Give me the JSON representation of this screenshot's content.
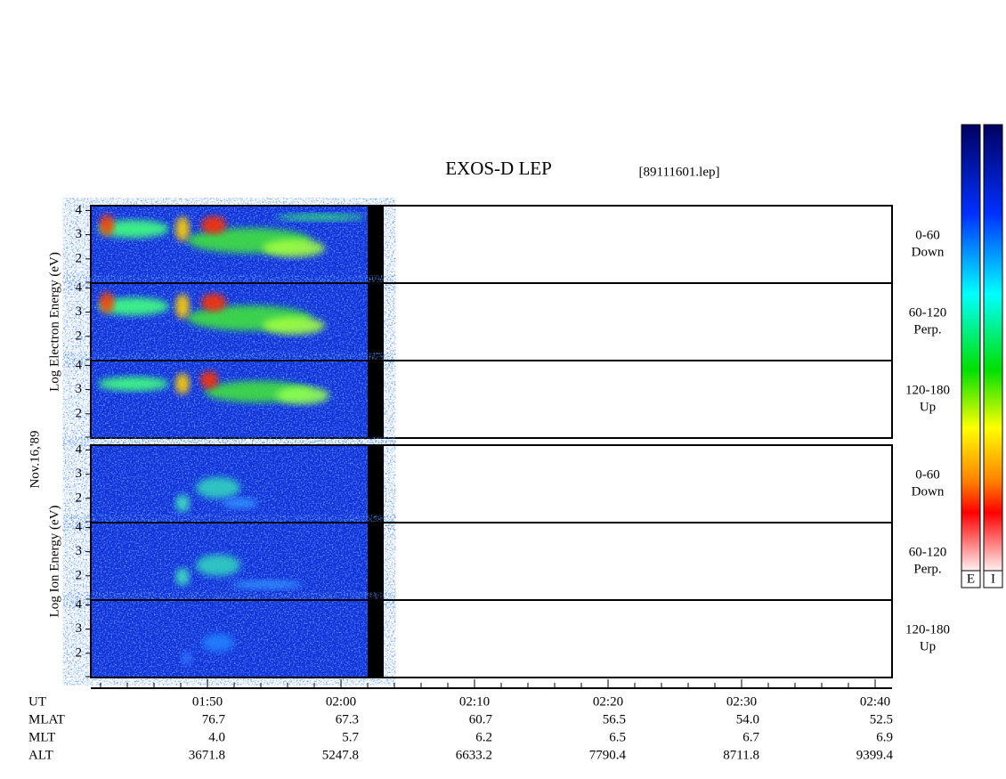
{
  "title": "EXOS-D LEP",
  "file": "[89111601.lep]",
  "date": "Nov.16,'89",
  "ylim": [
    1,
    4.2
  ],
  "yticks": [
    2,
    3,
    4
  ],
  "groups": [
    {
      "ylabel": "Log  Electron  Energy (eV)",
      "panels": [
        {
          "angle": "0-60",
          "dir": "Down"
        },
        {
          "angle": "60-120",
          "dir": "Perp."
        },
        {
          "angle": "120-180",
          "dir": "Up"
        }
      ]
    },
    {
      "ylabel": "Log  Ion  Energy (eV)",
      "panels": [
        {
          "angle": "0-60",
          "dir": "Down"
        },
        {
          "angle": "60-120",
          "dir": "Perp."
        },
        {
          "angle": "120-180",
          "dir": "Up"
        }
      ]
    }
  ],
  "colorbars": [
    "E",
    "I"
  ],
  "time_axis": {
    "row_labels": [
      "UT",
      "MLAT",
      "MLT",
      "ALT"
    ],
    "columns": [
      [
        "01:50",
        "76.7",
        "4.0",
        "3671.8"
      ],
      [
        "02:00",
        "67.3",
        "5.7",
        "5247.8"
      ],
      [
        "02:10",
        "60.7",
        "6.2",
        "6633.2"
      ],
      [
        "02:20",
        "56.5",
        "6.5",
        "7790.4"
      ],
      [
        "02:30",
        "54.0",
        "6.7",
        "8711.8"
      ],
      [
        "02:40",
        "52.5",
        "6.9",
        "9399.4"
      ]
    ]
  }
}
